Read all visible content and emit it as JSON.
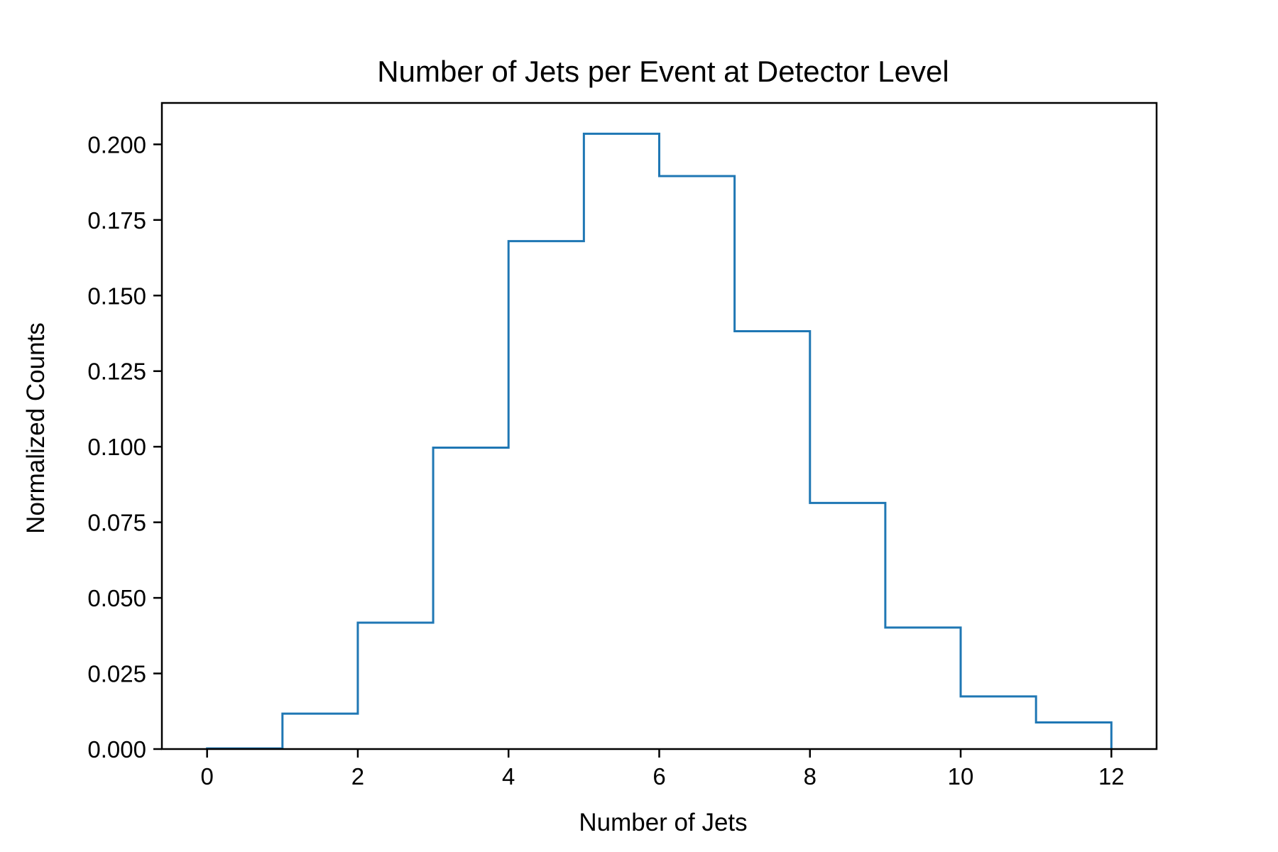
{
  "chart_data": {
    "type": "histogram",
    "title": "Number of Jets per Event at Detector Level",
    "xlabel": "Number of Jets",
    "ylabel": "Normalized Counts",
    "bin_edges": [
      0,
      1,
      2,
      3,
      4,
      5,
      6,
      7,
      8,
      9,
      10,
      11,
      12
    ],
    "values": [
      0.0002,
      0.0117,
      0.0418,
      0.0997,
      0.168,
      0.2035,
      0.1895,
      0.1382,
      0.0814,
      0.0402,
      0.0174,
      0.0088
    ],
    "xlim": [
      -0.6,
      12.6
    ],
    "ylim": [
      0,
      0.2137
    ],
    "xticks": [
      0,
      2,
      4,
      6,
      8,
      10,
      12
    ],
    "xtick_labels": [
      "0",
      "2",
      "4",
      "6",
      "8",
      "10",
      "12"
    ],
    "yticks": [
      0,
      0.025,
      0.05,
      0.075,
      0.1,
      0.125,
      0.15,
      0.175,
      0.2
    ],
    "ytick_labels": [
      "0.000",
      "0.025",
      "0.050",
      "0.075",
      "0.100",
      "0.125",
      "0.150",
      "0.175",
      "0.200"
    ],
    "grid": false,
    "legend": "none",
    "colors": {
      "series": "#1f77b4",
      "axes": "#000000",
      "background": "#ffffff"
    }
  }
}
